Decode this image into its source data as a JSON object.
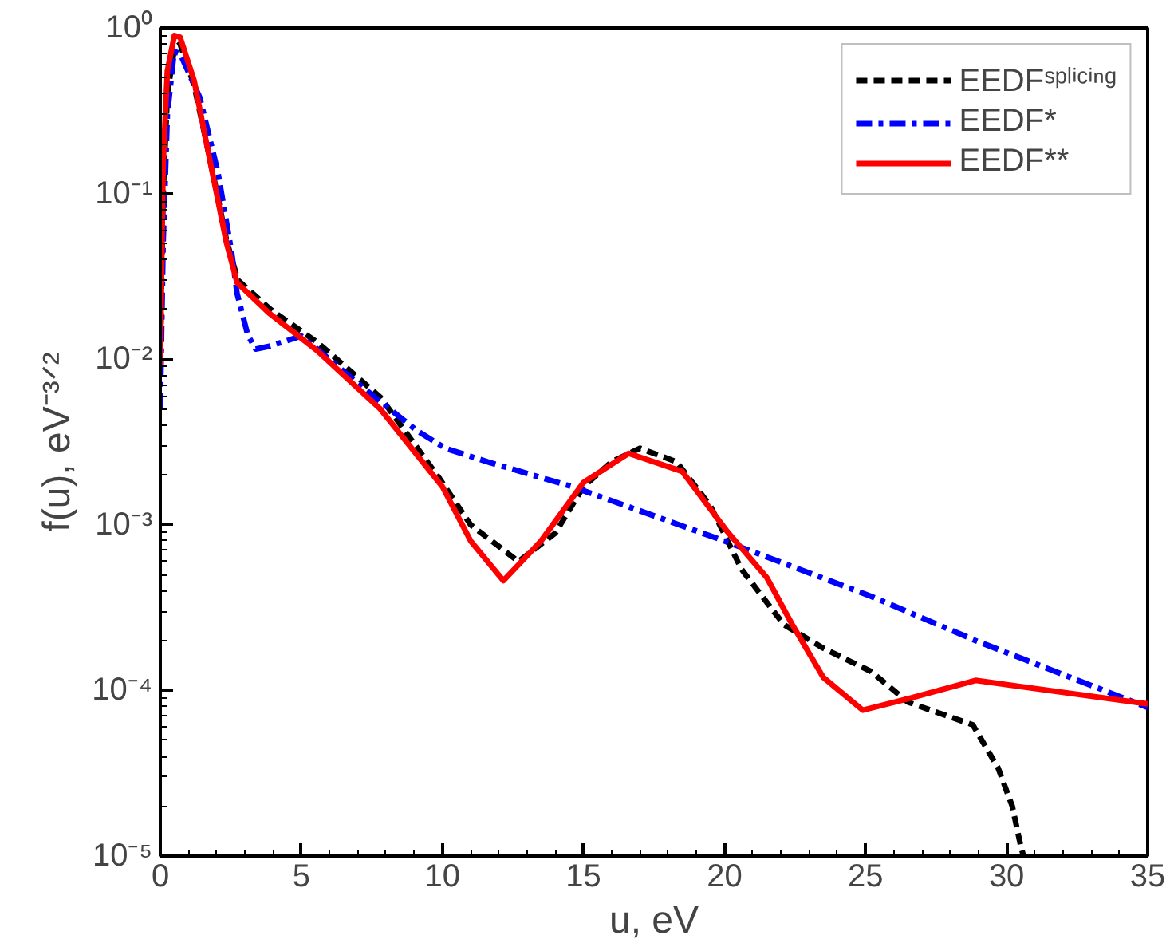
{
  "chart_data": {
    "type": "line",
    "xlabel": "u, eV",
    "ylabel": "f(u), eV⁻³ᐟ²",
    "log": "y",
    "xlim": [
      0,
      35
    ],
    "ylim": [
      1e-05,
      1
    ],
    "xticks": [
      0,
      5,
      10,
      15,
      20,
      25,
      30,
      35
    ],
    "yticks": [
      {
        "value": 1e-05,
        "label": "10⁻⁵"
      },
      {
        "value": 0.0001,
        "label": "10⁻⁴"
      },
      {
        "value": 0.001,
        "label": "10⁻³"
      },
      {
        "value": 0.01,
        "label": "10⁻²"
      },
      {
        "value": 0.1,
        "label": "10⁻¹"
      },
      {
        "value": 1,
        "label": "10⁰"
      }
    ],
    "grid": false,
    "legend": "top right",
    "series": [
      {
        "name": "EEDFˢᵖˡⁱᶜⁱⁿᵍ",
        "color": "#000000",
        "line_style": "dashed",
        "x": [
          0,
          0.1,
          0.25,
          0.5,
          0.7,
          1.2,
          1.8,
          2.35,
          2.75,
          3.9,
          5.6,
          7.8,
          9.9,
          11,
          12.7,
          14,
          15,
          16,
          17,
          18.3,
          19.5,
          20.6,
          22.1,
          23.5,
          25.2,
          26.5,
          28.8,
          29.7,
          30.2,
          30.5,
          30.6
        ],
        "values": [
          0.01,
          0.1,
          0.4,
          0.75,
          0.8,
          0.45,
          0.15,
          0.052,
          0.03,
          0.02,
          0.0125,
          0.0059,
          0.0019,
          0.001,
          0.0006,
          0.00089,
          0.0017,
          0.0024,
          0.0029,
          0.0024,
          0.0013,
          0.00054,
          0.00025,
          0.00018,
          0.00013,
          8.5e-05,
          6.2e-05,
          3.4e-05,
          2e-05,
          1.15e-05,
          1e-05
        ]
      },
      {
        "name": "EEDF*",
        "color": "#0000ff",
        "line_style": "dashdot",
        "x": [
          0,
          0.1,
          0.25,
          0.49,
          0.7,
          1.4,
          2.04,
          2.53,
          2.72,
          3.1,
          3.38,
          3.9,
          5.0,
          7.6,
          9.1,
          10.1,
          11.6,
          14.6,
          19.9,
          25.2,
          28.9,
          35
        ],
        "values": [
          0.005,
          0.05,
          0.3,
          0.72,
          0.7,
          0.38,
          0.135,
          0.044,
          0.025,
          0.014,
          0.0115,
          0.012,
          0.0138,
          0.0059,
          0.0037,
          0.0029,
          0.0024,
          0.0017,
          0.00081,
          0.00037,
          0.0002,
          7.9e-05
        ]
      },
      {
        "name": "EEDF**",
        "color": "#ff0000",
        "line_style": "solid",
        "x": [
          0,
          0.1,
          0.25,
          0.5,
          0.7,
          1.2,
          1.77,
          2.34,
          2.72,
          3.85,
          5.55,
          7.8,
          10,
          11,
          12.16,
          13.5,
          15,
          16.6,
          18.5,
          20.1,
          21.5,
          22.4,
          23.5,
          24.9,
          26.5,
          28.9,
          35
        ],
        "values": [
          0.009,
          0.15,
          0.55,
          0.9,
          0.88,
          0.48,
          0.155,
          0.051,
          0.029,
          0.019,
          0.0113,
          0.005,
          0.0017,
          0.0008,
          0.00046,
          0.0008,
          0.0018,
          0.0027,
          0.0021,
          0.00091,
          0.00048,
          0.00025,
          0.00012,
          7.6e-05,
          8.9e-05,
          0.000115,
          8.3e-05
        ]
      }
    ]
  }
}
